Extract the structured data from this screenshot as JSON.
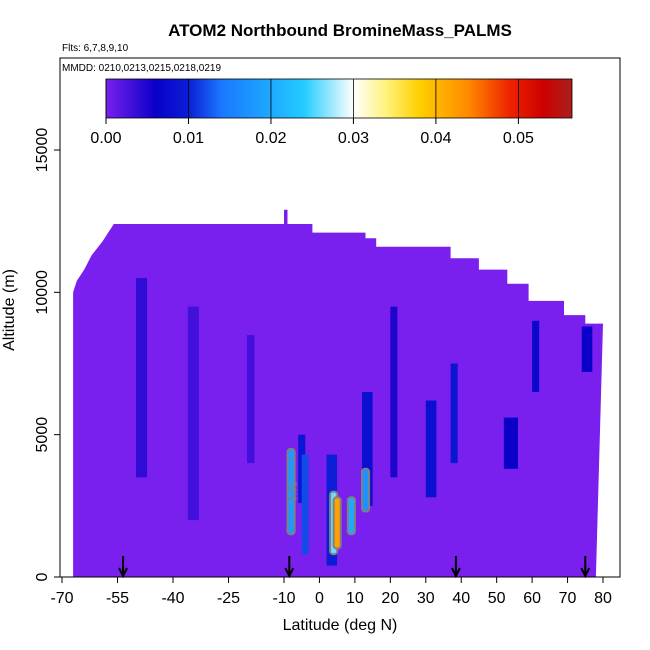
{
  "chart_data": {
    "type": "heatmap",
    "title": "ATOM2 Northbound BromineMass_PALMS",
    "subtitle_flights": "Flts: 6,7,8,9,10",
    "subtitle_dates": "MMDD: 0210,0213,0215,0218,0219",
    "xlabel": "Latitude (deg N)",
    "ylabel": "Altitude (m)",
    "xlim": [
      -70,
      80
    ],
    "ylim": [
      0,
      17500
    ],
    "x_ticks": [
      -70,
      -55,
      -40,
      -25,
      -10,
      0,
      10,
      20,
      30,
      40,
      50,
      60,
      70,
      80
    ],
    "x_tick_labels": [
      "-70",
      "-55",
      "-40",
      "-25",
      "-10",
      "0",
      "10",
      "20",
      "30",
      "40",
      "50",
      "60",
      "70",
      "80"
    ],
    "y_ticks": [
      0,
      5000,
      10000,
      15000
    ],
    "y_tick_labels": [
      "0",
      "5000",
      "10000",
      "15000"
    ],
    "x_axis_segments": [
      {
        "from": -70,
        "to": -10,
        "step": 15
      },
      {
        "from": -10,
        "to": 80,
        "step": 10
      }
    ],
    "colorbar": {
      "min": 0.0,
      "max": 0.0565,
      "ticks": [
        0.0,
        0.01,
        0.02,
        0.03,
        0.04,
        0.05
      ],
      "tick_labels": [
        "0.00",
        "0.01",
        "0.02",
        "0.03",
        "0.04",
        "0.05"
      ],
      "stops": [
        {
          "v": 0.0,
          "c": "#7a20ee"
        },
        {
          "v": 0.006,
          "c": "#0a00c8"
        },
        {
          "v": 0.01,
          "c": "#0b1ed6"
        },
        {
          "v": 0.014,
          "c": "#1a78ff"
        },
        {
          "v": 0.02,
          "c": "#1eaaff"
        },
        {
          "v": 0.024,
          "c": "#22ccff"
        },
        {
          "v": 0.03,
          "c": "#ffffff"
        },
        {
          "v": 0.034,
          "c": "#fff27a"
        },
        {
          "v": 0.038,
          "c": "#ffd000"
        },
        {
          "v": 0.044,
          "c": "#ff8800"
        },
        {
          "v": 0.049,
          "c": "#ee2200"
        },
        {
          "v": 0.053,
          "c": "#cc0000"
        },
        {
          "v": 0.0565,
          "c": "#aa2020"
        }
      ]
    },
    "colors": {
      "background_field": "#7a20ee",
      "contour": "#808080",
      "arrow": "#000000"
    },
    "data_envelope_top": [
      [
        -67,
        10000
      ],
      [
        -66,
        10400
      ],
      [
        -64,
        10800
      ],
      [
        -62,
        11300
      ],
      [
        -59,
        11800
      ],
      [
        -56,
        12400
      ],
      [
        -10,
        12400
      ],
      [
        -10,
        12900
      ],
      [
        -9,
        12900
      ],
      [
        -9,
        12400
      ],
      [
        -2,
        12400
      ],
      [
        -2,
        12100
      ],
      [
        13,
        12100
      ],
      [
        13,
        11900
      ],
      [
        16,
        11900
      ],
      [
        16,
        11600
      ],
      [
        37,
        11600
      ],
      [
        37,
        11200
      ],
      [
        45,
        11200
      ],
      [
        45,
        10800
      ],
      [
        53,
        10800
      ],
      [
        53,
        10300
      ],
      [
        59,
        10300
      ],
      [
        59,
        9700
      ],
      [
        69,
        9700
      ],
      [
        69,
        9200
      ],
      [
        75,
        9200
      ],
      [
        75,
        8900
      ],
      [
        80,
        8900
      ]
    ],
    "data_envelope_left": -67,
    "data_envelope_right_bottom": 78,
    "patches": [
      {
        "x": [
          -50,
          -47
        ],
        "y": [
          3500,
          10500
        ],
        "v": 0.004
      },
      {
        "x": [
          -36,
          -33
        ],
        "y": [
          2000,
          9500
        ],
        "v": 0.003
      },
      {
        "x": [
          -20,
          -18
        ],
        "y": [
          4000,
          8500
        ],
        "v": 0.003
      },
      {
        "x": [
          -6,
          -4
        ],
        "y": [
          2600,
          5000
        ],
        "v": 0.009
      },
      {
        "x": [
          -5,
          -3
        ],
        "y": [
          800,
          4300
        ],
        "v": 0.012
      },
      {
        "x": [
          2,
          5
        ],
        "y": [
          400,
          4300
        ],
        "v": 0.01
      },
      {
        "x": [
          12,
          15
        ],
        "y": [
          2500,
          6500
        ],
        "v": 0.008
      },
      {
        "x": [
          20,
          22
        ],
        "y": [
          3500,
          9500
        ],
        "v": 0.005
      },
      {
        "x": [
          30,
          33
        ],
        "y": [
          2800,
          6200
        ],
        "v": 0.008
      },
      {
        "x": [
          37,
          39
        ],
        "y": [
          4000,
          7500
        ],
        "v": 0.009
      },
      {
        "x": [
          52,
          56
        ],
        "y": [
          3800,
          5600
        ],
        "v": 0.006
      },
      {
        "x": [
          60,
          62
        ],
        "y": [
          6500,
          9000
        ],
        "v": 0.007
      },
      {
        "x": [
          74,
          77
        ],
        "y": [
          7200,
          8800
        ],
        "v": 0.006
      }
    ],
    "plumes": [
      {
        "x": [
          -9,
          -7
        ],
        "y": [
          1500,
          4500
        ],
        "v": 0.018
      },
      {
        "x": [
          3,
          5
        ],
        "y": [
          800,
          3000
        ],
        "v": 0.026
      },
      {
        "x": [
          4,
          6
        ],
        "y": [
          1000,
          2800
        ],
        "v": 0.042
      },
      {
        "x": [
          8,
          10
        ],
        "y": [
          1500,
          2800
        ],
        "v": 0.02
      },
      {
        "x": [
          12,
          14
        ],
        "y": [
          2300,
          3800
        ],
        "v": 0.017
      }
    ],
    "contour_label": "0.01",
    "flight_marker_latitudes": [
      -53.5,
      -8.5,
      38.5,
      75
    ]
  }
}
